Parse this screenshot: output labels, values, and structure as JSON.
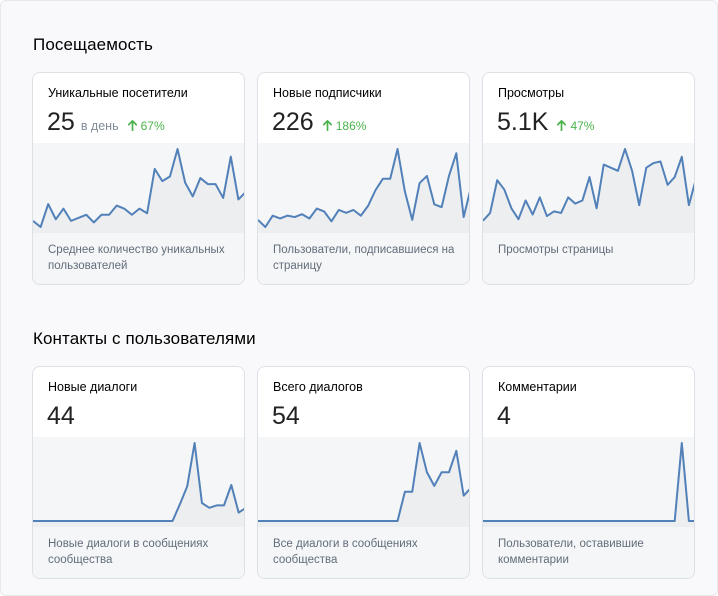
{
  "sections": [
    {
      "title": "Посещаемость",
      "cards": [
        {
          "title": "Уникальные посетители",
          "value": "25",
          "unit": "в день",
          "trend": "67%",
          "description": "Среднее количество уникальных пользователей",
          "series": [
            4,
            0,
            15,
            5,
            12,
            4,
            6,
            8,
            3,
            8,
            8,
            14,
            12,
            8,
            12,
            9,
            38,
            30,
            33,
            51,
            29,
            20,
            32,
            28,
            28,
            19,
            46,
            18,
            23
          ]
        },
        {
          "title": "Новые подписчики",
          "value": "226",
          "unit": "",
          "trend": "186%",
          "description": "Пользователи, подписавшиеся на страницу",
          "series": [
            5,
            0,
            8,
            6,
            8,
            7,
            9,
            6,
            13,
            11,
            4,
            12,
            10,
            12,
            8,
            15,
            26,
            34,
            34,
            55,
            25,
            5,
            31,
            36,
            16,
            14,
            36,
            52,
            7,
            28
          ]
        },
        {
          "title": "Просмотры",
          "value": "5.1K",
          "unit": "",
          "trend": "47%",
          "description": "Просмотры страницы",
          "series": [
            4,
            9,
            30,
            24,
            12,
            5,
            17,
            8,
            19,
            7,
            10,
            9,
            19,
            15,
            17,
            32,
            12,
            40,
            38,
            36,
            50,
            36,
            14,
            38,
            41,
            42,
            27,
            32,
            45,
            14,
            31
          ]
        }
      ]
    },
    {
      "title": "Контакты с пользователями",
      "cards": [
        {
          "title": "Новые диалоги",
          "value": "44",
          "unit": "",
          "trend": "",
          "description": "Новые диалоги в сообщениях сообщества",
          "series": [
            0,
            0,
            0,
            0,
            0,
            0,
            0,
            0,
            0,
            0,
            0,
            0,
            0,
            0,
            0,
            0,
            0,
            0,
            0,
            0,
            14,
            29,
            65,
            15,
            11,
            13,
            13,
            30,
            7,
            11
          ]
        },
        {
          "title": "Всего диалогов",
          "value": "54",
          "unit": "",
          "trend": "",
          "description": "Все диалоги в сообщениях сообщества",
          "series": [
            0,
            0,
            0,
            0,
            0,
            0,
            0,
            0,
            0,
            0,
            0,
            0,
            0,
            0,
            0,
            0,
            0,
            0,
            0,
            0,
            15,
            15,
            40,
            25,
            18,
            25,
            25,
            36,
            13,
            17
          ]
        },
        {
          "title": "Комментарии",
          "value": "4",
          "unit": "",
          "trend": "",
          "description": "Пользователи, оставившие комментарии",
          "series": [
            0,
            0,
            0,
            0,
            0,
            0,
            0,
            0,
            0,
            0,
            0,
            0,
            0,
            0,
            0,
            0,
            0,
            0,
            0,
            0,
            0,
            0,
            0,
            0,
            0,
            0,
            0,
            0,
            3,
            0,
            0
          ]
        }
      ]
    }
  ],
  "colors": {
    "line": "#5181b8",
    "fill": "#edeef0",
    "trend_up": "#4bb34b"
  },
  "icons": {
    "trend": "arrow-up-icon"
  }
}
